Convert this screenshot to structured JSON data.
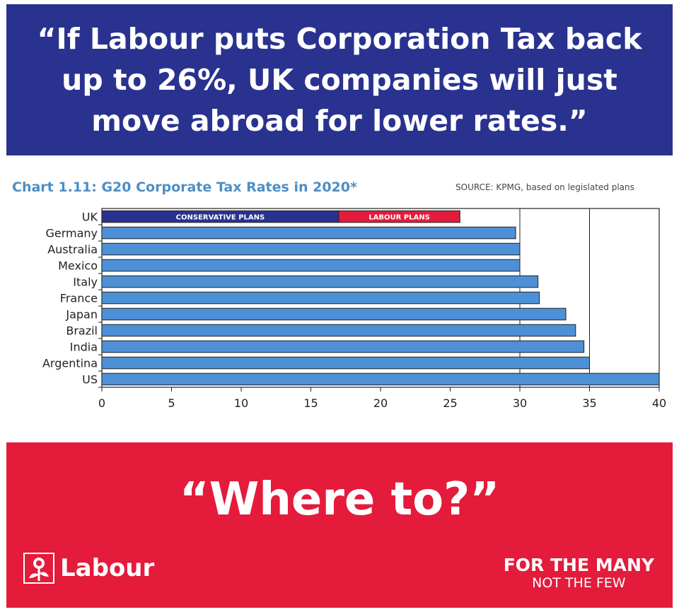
{
  "header": {
    "headline": "“If Labour puts Corporation Tax back up to 26%, UK companies will just move abroad for lower rates.”"
  },
  "footer": {
    "answer": "“Where to?”",
    "logo_text": "Labour",
    "slogan_line1": "FOR THE MANY",
    "slogan_line2": "NOT THE FEW"
  },
  "colors": {
    "banner_blue": "#2a3290",
    "banner_red": "#e41b3b",
    "bar_blue": "#4d90d6",
    "title_blue": "#4d8ec4",
    "conservative": "#2a3290",
    "labour": "#e41b3b"
  },
  "icons": [
    "labour-rose-icon"
  ],
  "chart_data": {
    "type": "bar",
    "orientation": "horizontal",
    "title": "Chart 1.11: G20 Corporate Tax Rates in 2020*",
    "source": "SOURCE: KPMG, based on legislated plans",
    "categories": [
      "UK",
      "Germany",
      "Australia",
      "Mexico",
      "Italy",
      "France",
      "Japan",
      "Brazil",
      "India",
      "Argentina",
      "US"
    ],
    "values": [
      null,
      29.7,
      30,
      30,
      31.3,
      31.4,
      33.3,
      34,
      34.6,
      35,
      40
    ],
    "uk_segments": [
      {
        "name": "CONSERVATIVE PLANS",
        "start": 0,
        "end": 17
      },
      {
        "name": "LABOUR PLANS",
        "start": 17,
        "end": 25.7
      }
    ],
    "xlim": [
      0,
      40
    ],
    "xticks": [
      0,
      5,
      10,
      15,
      20,
      25,
      30,
      35,
      40
    ],
    "gridlines": [
      30,
      35
    ],
    "legend": "none"
  }
}
